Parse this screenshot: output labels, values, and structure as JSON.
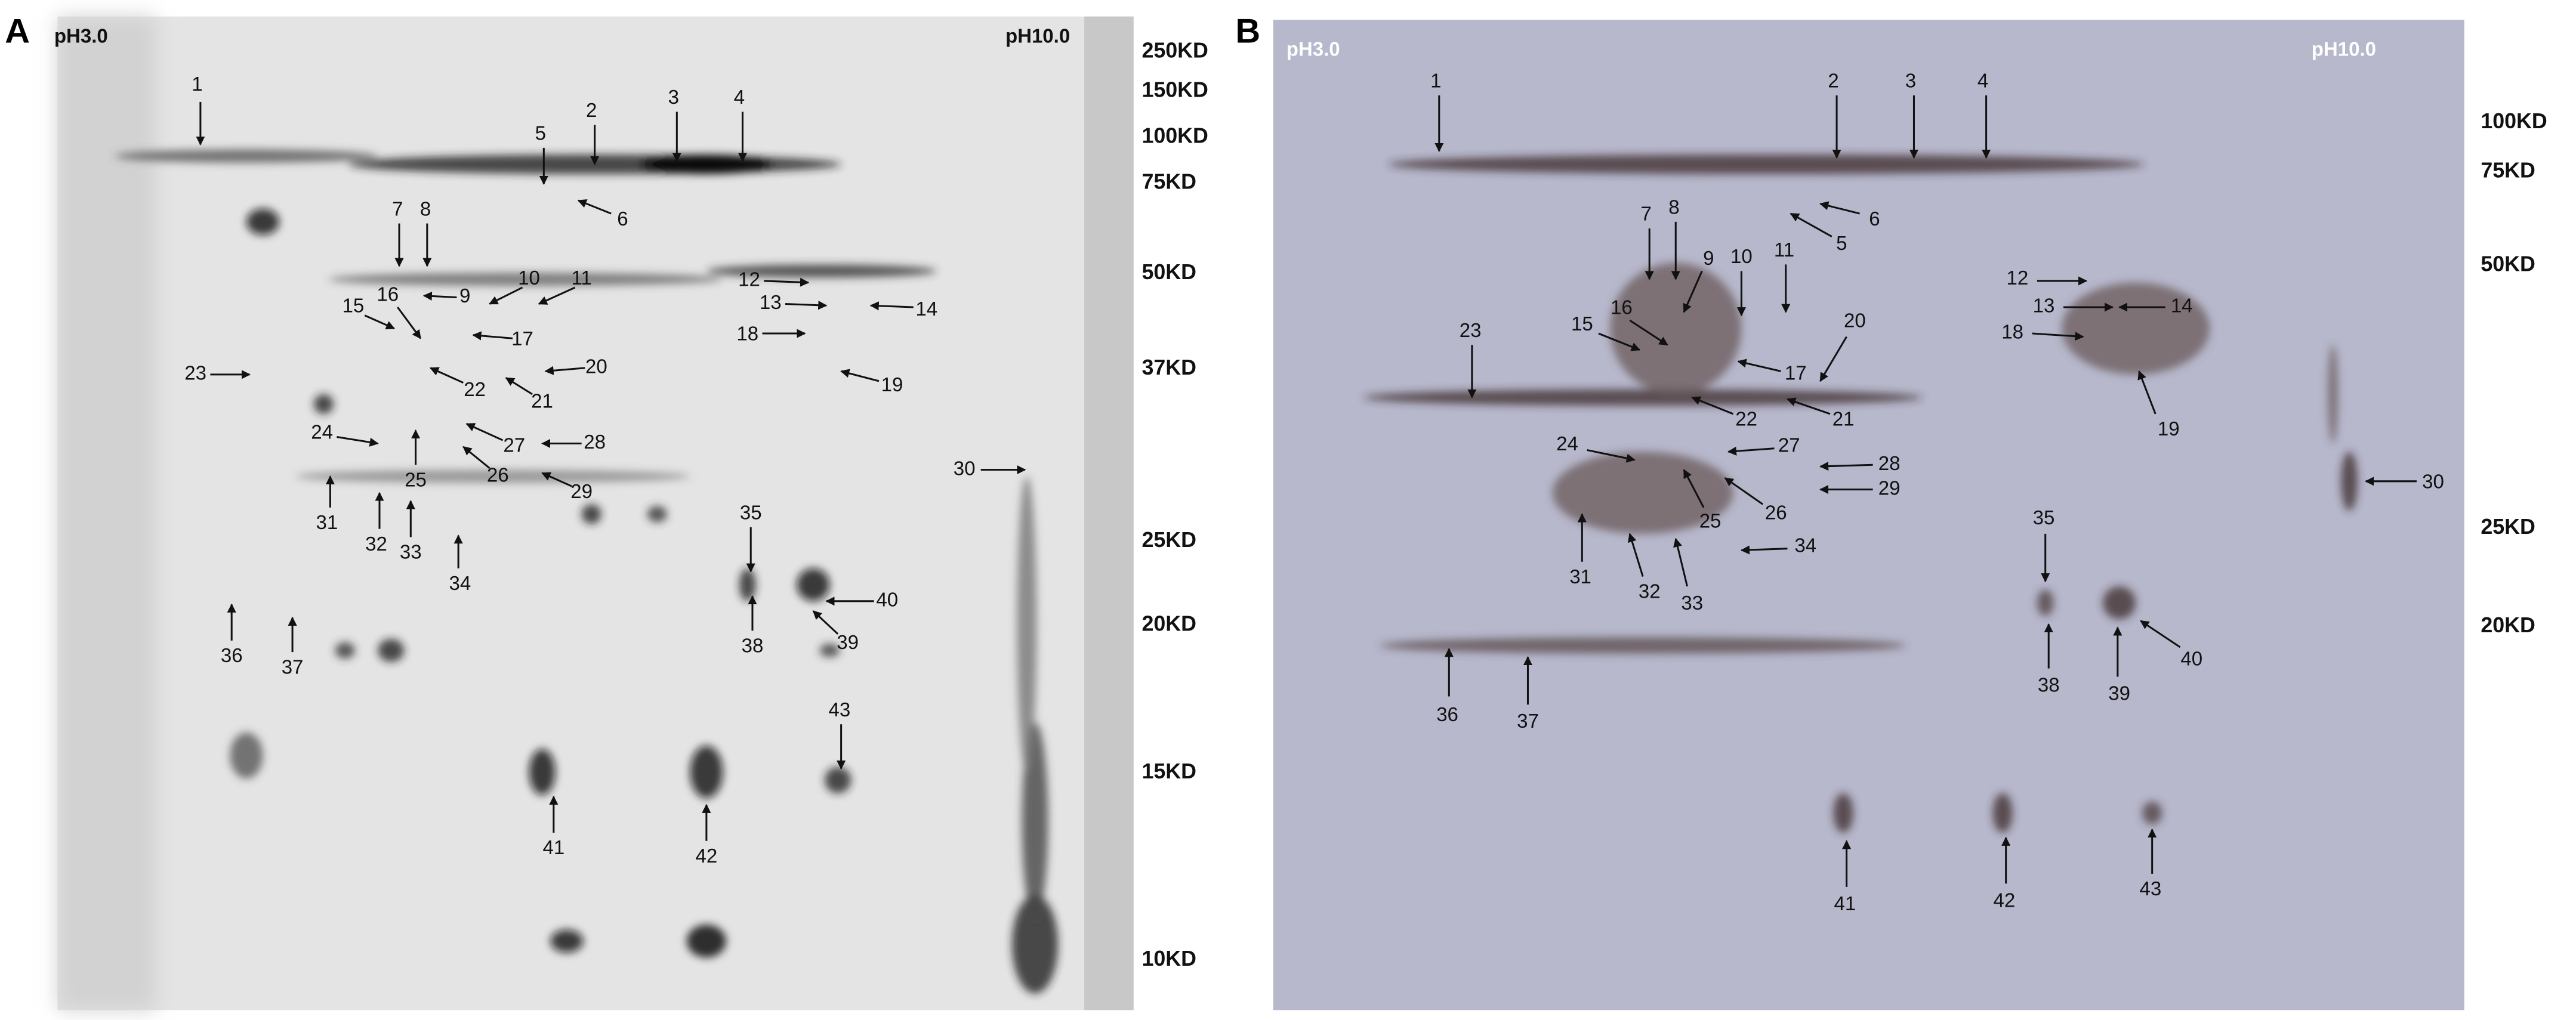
{
  "panels": [
    {
      "label": "A",
      "ph_left": "pH3.0",
      "ph_right": "pH10.0",
      "mw_markers": [
        "250KD",
        "150KD",
        "100KD",
        "75KD",
        "50KD",
        "37KD",
        "25KD",
        "20KD",
        "15KD",
        "10KD"
      ],
      "spots": [
        "1",
        "2",
        "3",
        "4",
        "5",
        "6",
        "7",
        "8",
        "9",
        "10",
        "11",
        "12",
        "13",
        "14",
        "15",
        "16",
        "17",
        "18",
        "19",
        "20",
        "21",
        "22",
        "23",
        "24",
        "25",
        "26",
        "27",
        "28",
        "29",
        "30",
        "31",
        "32",
        "33",
        "34",
        "35",
        "36",
        "37",
        "38",
        "39",
        "40",
        "41",
        "42",
        "43"
      ]
    },
    {
      "label": "B",
      "ph_left": "pH3.0",
      "ph_right": "pH10.0",
      "mw_markers": [
        "100KD",
        "75KD",
        "50KD",
        "25KD",
        "20KD"
      ],
      "spots": [
        "1",
        "2",
        "3",
        "4",
        "5",
        "6",
        "7",
        "8",
        "9",
        "10",
        "11",
        "12",
        "13",
        "14",
        "15",
        "16",
        "17",
        "18",
        "19",
        "20",
        "21",
        "22",
        "23",
        "24",
        "25",
        "26",
        "27",
        "28",
        "29",
        "30",
        "31",
        "32",
        "33",
        "34",
        "35",
        "36",
        "37",
        "38",
        "39",
        "40",
        "41",
        "42",
        "43"
      ]
    }
  ]
}
